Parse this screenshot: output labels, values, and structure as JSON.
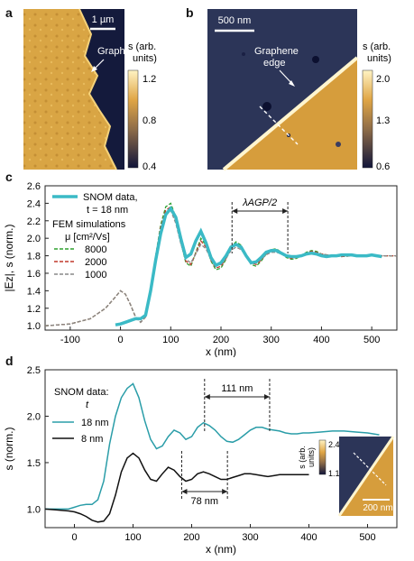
{
  "panels": {
    "a": {
      "letter": "a",
      "scalebar": "1 µm",
      "annotation": "Graphene edge",
      "colorbar": {
        "label_line1": "s (arb.",
        "label_line2": "units)",
        "ticks": [
          "1.2",
          "0.8",
          "0.4"
        ]
      }
    },
    "b": {
      "letter": "b",
      "scalebar": "500 nm",
      "annotation_line1": "Graphene",
      "annotation_line2": "edge",
      "colorbar": {
        "label_line1": "s (arb.",
        "label_line2": "units)",
        "ticks": [
          "2.0",
          "1.3",
          "0.6"
        ]
      }
    },
    "c": {
      "letter": "c"
    },
    "d": {
      "letter": "d"
    }
  },
  "colors": {
    "snom": "#3bbac6",
    "fem_8000": "#2fa02f",
    "fem_2000": "#c0392b",
    "fem_1000": "#888888",
    "trace_8nm": "#111111",
    "trace_18nm": "#2a9da8"
  },
  "chart_data": [
    {
      "type": "line",
      "panel": "c",
      "xlabel": "x (nm)",
      "ylabel": "|Ez|, s (norm.)",
      "xlim": [
        -150,
        550
      ],
      "ylim": [
        0.95,
        2.6
      ],
      "xticks": [
        -100,
        0,
        100,
        200,
        300,
        400,
        500
      ],
      "yticks": [
        1.0,
        1.2,
        1.4,
        1.6,
        1.8,
        2.0,
        2.2,
        2.4,
        2.6
      ],
      "legend": {
        "snom_line1": "SNOM data,",
        "snom_line2": "t = 18 nm",
        "fem_title": "FEM simulations",
        "fem_unit": "μ [cm²/Vs]",
        "entries": [
          "8000",
          "2000",
          "1000"
        ]
      },
      "annotation": "λAGP/2",
      "annotation_range": [
        222,
        333
      ],
      "series": [
        {
          "name": "SNOM data",
          "x": [
            -10,
            0,
            10,
            20,
            30,
            40,
            50,
            60,
            70,
            80,
            90,
            100,
            110,
            120,
            130,
            140,
            150,
            160,
            170,
            180,
            190,
            200,
            210,
            220,
            230,
            240,
            250,
            260,
            270,
            280,
            290,
            300,
            310,
            320,
            330,
            340,
            350,
            360,
            370,
            380,
            390,
            400,
            410,
            420,
            430,
            440,
            450,
            460,
            470,
            480,
            490,
            500,
            510,
            520
          ],
          "y": [
            1.01,
            1.02,
            1.04,
            1.06,
            1.08,
            1.08,
            1.12,
            1.4,
            1.75,
            2.05,
            2.27,
            2.34,
            2.24,
            2.0,
            1.78,
            1.82,
            1.97,
            2.08,
            1.95,
            1.78,
            1.69,
            1.72,
            1.8,
            1.9,
            1.93,
            1.9,
            1.8,
            1.72,
            1.73,
            1.78,
            1.84,
            1.86,
            1.86,
            1.83,
            1.8,
            1.79,
            1.79,
            1.8,
            1.82,
            1.83,
            1.82,
            1.8,
            1.79,
            1.8,
            1.8,
            1.81,
            1.81,
            1.81,
            1.8,
            1.8,
            1.8,
            1.81,
            1.8,
            1.79
          ]
        },
        {
          "name": "8000",
          "x": [
            -150,
            -100,
            -60,
            -30,
            -10,
            0,
            10,
            20,
            30,
            40,
            50,
            60,
            70,
            80,
            90,
            100,
            110,
            120,
            130,
            140,
            150,
            160,
            170,
            180,
            190,
            200,
            210,
            220,
            230,
            240,
            250,
            260,
            270,
            280,
            290,
            300,
            310,
            320,
            330,
            340,
            350,
            360,
            370,
            380,
            390,
            400,
            420,
            440,
            460,
            480,
            500,
            520,
            550
          ],
          "y": [
            1.0,
            1.02,
            1.08,
            1.2,
            1.33,
            1.4,
            1.36,
            1.24,
            1.1,
            1.04,
            1.1,
            1.42,
            1.8,
            2.15,
            2.36,
            2.4,
            2.24,
            1.96,
            1.72,
            1.68,
            1.84,
            2.0,
            1.92,
            1.74,
            1.64,
            1.66,
            1.76,
            1.9,
            1.96,
            1.92,
            1.8,
            1.7,
            1.68,
            1.74,
            1.82,
            1.87,
            1.88,
            1.84,
            1.78,
            1.76,
            1.77,
            1.8,
            1.84,
            1.86,
            1.85,
            1.82,
            1.8,
            1.79,
            1.8,
            1.8,
            1.8,
            1.8,
            1.8
          ]
        },
        {
          "name": "2000",
          "x": [
            -150,
            -100,
            -60,
            -30,
            -10,
            0,
            10,
            20,
            30,
            40,
            50,
            60,
            70,
            80,
            90,
            100,
            110,
            120,
            130,
            140,
            150,
            160,
            170,
            180,
            190,
            200,
            210,
            220,
            230,
            240,
            250,
            260,
            270,
            280,
            290,
            300,
            310,
            320,
            330,
            340,
            350,
            360,
            370,
            380,
            390,
            400,
            420,
            440,
            460,
            480,
            500,
            520,
            550
          ],
          "y": [
            1.0,
            1.02,
            1.08,
            1.2,
            1.33,
            1.4,
            1.36,
            1.24,
            1.1,
            1.04,
            1.1,
            1.42,
            1.8,
            2.12,
            2.32,
            2.36,
            2.2,
            1.95,
            1.74,
            1.7,
            1.83,
            1.97,
            1.9,
            1.75,
            1.66,
            1.68,
            1.77,
            1.89,
            1.94,
            1.9,
            1.8,
            1.72,
            1.7,
            1.75,
            1.82,
            1.86,
            1.86,
            1.83,
            1.79,
            1.77,
            1.78,
            1.8,
            1.83,
            1.85,
            1.84,
            1.82,
            1.8,
            1.79,
            1.8,
            1.8,
            1.8,
            1.8,
            1.8
          ]
        },
        {
          "name": "1000",
          "x": [
            -150,
            -100,
            -60,
            -30,
            -10,
            0,
            10,
            20,
            30,
            40,
            50,
            60,
            70,
            80,
            90,
            100,
            110,
            120,
            130,
            140,
            150,
            160,
            170,
            180,
            190,
            200,
            210,
            220,
            230,
            240,
            250,
            260,
            270,
            280,
            290,
            300,
            310,
            320,
            330,
            340,
            350,
            360,
            370,
            380,
            390,
            400,
            420,
            440,
            460,
            480,
            500,
            520,
            550
          ],
          "y": [
            1.0,
            1.02,
            1.08,
            1.2,
            1.33,
            1.4,
            1.36,
            1.24,
            1.1,
            1.04,
            1.1,
            1.42,
            1.78,
            2.08,
            2.28,
            2.32,
            2.17,
            1.94,
            1.76,
            1.72,
            1.82,
            1.93,
            1.88,
            1.76,
            1.69,
            1.7,
            1.77,
            1.86,
            1.9,
            1.87,
            1.8,
            1.74,
            1.72,
            1.76,
            1.81,
            1.84,
            1.84,
            1.82,
            1.79,
            1.78,
            1.79,
            1.8,
            1.82,
            1.83,
            1.83,
            1.82,
            1.8,
            1.8,
            1.8,
            1.8,
            1.8,
            1.8,
            1.8
          ]
        }
      ]
    },
    {
      "type": "line",
      "panel": "d",
      "xlabel": "x (nm)",
      "ylabel": "s (norm.)",
      "xlim": [
        -50,
        550
      ],
      "ylim": [
        0.8,
        2.5
      ],
      "xticks": [
        0,
        100,
        200,
        300,
        400,
        500
      ],
      "yticks": [
        1.0,
        1.5,
        2.0,
        2.5
      ],
      "legend": {
        "title_line1": "SNOM data:",
        "title_line2": "t",
        "entries": [
          "18 nm",
          "8 nm"
        ]
      },
      "annotations": [
        {
          "label": "111 nm",
          "range": [
            222,
            333
          ]
        },
        {
          "label": "78 nm",
          "range": [
            183,
            261
          ]
        }
      ],
      "inset": {
        "colorbar_label_line1": "s (arb.",
        "colorbar_label_line2": "units)",
        "ticks": [
          "2.4",
          "1.1"
        ],
        "scalebar": "200 nm"
      },
      "series": [
        {
          "name": "18 nm",
          "x": [
            -50,
            -30,
            -10,
            0,
            10,
            20,
            30,
            40,
            50,
            60,
            70,
            80,
            90,
            100,
            110,
            120,
            130,
            140,
            150,
            160,
            170,
            180,
            190,
            200,
            210,
            220,
            230,
            240,
            250,
            260,
            270,
            280,
            290,
            300,
            310,
            320,
            330,
            340,
            350,
            360,
            370,
            380,
            390,
            400,
            420,
            440,
            460,
            480,
            500,
            520
          ],
          "y": [
            1.0,
            1.0,
            1.0,
            1.02,
            1.04,
            1.05,
            1.05,
            1.1,
            1.3,
            1.7,
            2.0,
            2.2,
            2.3,
            2.35,
            2.2,
            1.95,
            1.75,
            1.65,
            1.68,
            1.78,
            1.85,
            1.82,
            1.75,
            1.78,
            1.88,
            1.93,
            1.9,
            1.85,
            1.78,
            1.73,
            1.72,
            1.75,
            1.8,
            1.85,
            1.88,
            1.88,
            1.86,
            1.85,
            1.84,
            1.82,
            1.81,
            1.81,
            1.82,
            1.82,
            1.83,
            1.84,
            1.84,
            1.83,
            1.82,
            1.8
          ]
        },
        {
          "name": "8 nm",
          "x": [
            -50,
            -30,
            -10,
            0,
            10,
            20,
            30,
            40,
            50,
            60,
            70,
            80,
            90,
            100,
            110,
            120,
            130,
            140,
            150,
            160,
            170,
            180,
            190,
            200,
            210,
            220,
            230,
            240,
            250,
            260,
            270,
            280,
            290,
            300,
            310,
            320,
            330,
            340,
            350,
            360,
            370,
            380,
            390,
            400
          ],
          "y": [
            1.0,
            0.99,
            0.98,
            0.97,
            0.95,
            0.92,
            0.88,
            0.86,
            0.87,
            0.95,
            1.15,
            1.4,
            1.55,
            1.6,
            1.55,
            1.42,
            1.32,
            1.3,
            1.38,
            1.45,
            1.42,
            1.35,
            1.3,
            1.32,
            1.38,
            1.4,
            1.38,
            1.35,
            1.32,
            1.32,
            1.34,
            1.36,
            1.38,
            1.38,
            1.37,
            1.36,
            1.35,
            1.36,
            1.37,
            1.37,
            1.37,
            1.37,
            1.37,
            1.37
          ]
        }
      ]
    }
  ]
}
